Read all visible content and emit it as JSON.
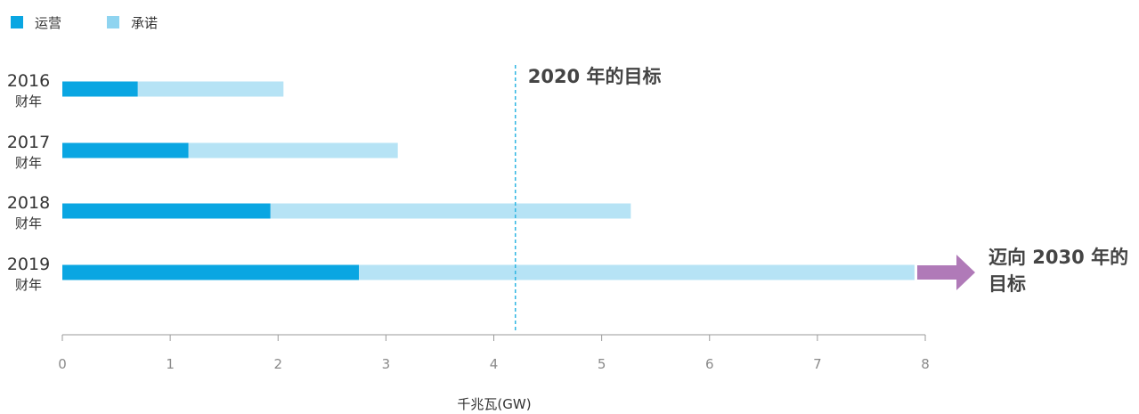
{
  "chart_data": {
    "type": "bar",
    "orientation": "horizontal",
    "stacked": true,
    "categories": [
      {
        "year": "2016",
        "suffix": "财年"
      },
      {
        "year": "2017",
        "suffix": "财年"
      },
      {
        "year": "2018",
        "suffix": "财年"
      },
      {
        "year": "2019",
        "suffix": "财年"
      }
    ],
    "series": [
      {
        "name": "运营",
        "color": "#0aa6e2",
        "values": [
          0.7,
          1.17,
          1.93,
          2.75
        ]
      },
      {
        "name": "承诺",
        "color": "#b6e3f5",
        "values": [
          1.35,
          1.94,
          3.34,
          5.15
        ]
      }
    ],
    "legend_colors": [
      "#0aa6e2",
      "#8fd4f0"
    ],
    "xlabel": "千兆瓦(GW)",
    "xlim": [
      0,
      8
    ],
    "xticks": [
      "0",
      "1",
      "2",
      "3",
      "4",
      "5",
      "6",
      "7",
      "8"
    ],
    "reference_line": {
      "value": 4.2,
      "label": "2020 年的目标",
      "color": "#2fb6e3"
    },
    "arrow_annotation": {
      "lines": [
        "迈向 2030 年的",
        "目标"
      ],
      "color": "#b07ab8"
    },
    "legend_position": "top-left",
    "grid": false
  }
}
